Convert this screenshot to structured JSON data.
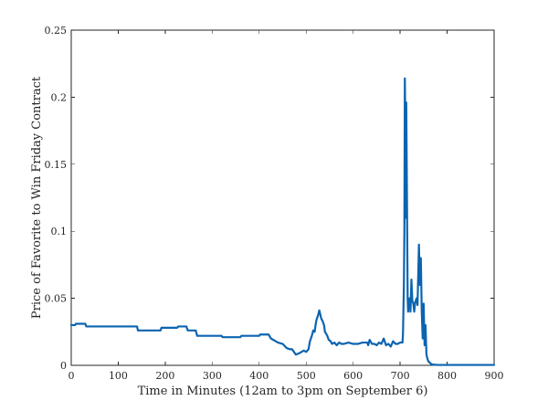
{
  "chart_data": {
    "type": "line",
    "title": "",
    "xlabel": "Time in Minutes (12am to 3pm on September 6)",
    "ylabel": "Price of Favorite to Win Friday Contract",
    "xlim": [
      0,
      900
    ],
    "ylim": [
      0,
      0.25
    ],
    "xticks": [
      0,
      100,
      200,
      300,
      400,
      500,
      600,
      700,
      800,
      900
    ],
    "xtick_labels": [
      "0",
      "100",
      "200",
      "300",
      "400",
      "500",
      "600",
      "700",
      "800",
      "900"
    ],
    "yticks": [
      0,
      0.05,
      0.1,
      0.15,
      0.2,
      0.25
    ],
    "ytick_labels": [
      "0",
      "0.05",
      "0.1",
      "0.15",
      "0.2",
      "0.25"
    ],
    "grid": false,
    "line_color": "#0b64b0",
    "series": [
      {
        "x": [
          0,
          8,
          10,
          30,
          32,
          80,
          82,
          140,
          142,
          190,
          192,
          225,
          228,
          245,
          248,
          265,
          268,
          320,
          322,
          360,
          362,
          400,
          402,
          420,
          425,
          440,
          450,
          458,
          465,
          470,
          478,
          485,
          495,
          500,
          505,
          508,
          512,
          515,
          518,
          520,
          522,
          525,
          528,
          530,
          532,
          535,
          538,
          540,
          545,
          548,
          552,
          555,
          560,
          565,
          570,
          575,
          580,
          590,
          600,
          610,
          620,
          630,
          632,
          635,
          640,
          645,
          650,
          655,
          660,
          665,
          670,
          675,
          680,
          685,
          690,
          695,
          700,
          705,
          706,
          708,
          709,
          710,
          711,
          712,
          713,
          714,
          715,
          716,
          717,
          718,
          719,
          720,
          722,
          724,
          726,
          728,
          730,
          732,
          735,
          737,
          740,
          742,
          744,
          746,
          748,
          750,
          752,
          754,
          756,
          758,
          760,
          763,
          766,
          770,
          780,
          800,
          850,
          900
        ],
        "y": [
          0.03,
          0.03,
          0.031,
          0.031,
          0.029,
          0.029,
          0.029,
          0.029,
          0.026,
          0.026,
          0.028,
          0.028,
          0.029,
          0.029,
          0.026,
          0.026,
          0.022,
          0.022,
          0.021,
          0.021,
          0.022,
          0.022,
          0.023,
          0.023,
          0.02,
          0.017,
          0.016,
          0.013,
          0.012,
          0.012,
          0.008,
          0.009,
          0.011,
          0.01,
          0.012,
          0.018,
          0.022,
          0.026,
          0.025,
          0.03,
          0.034,
          0.037,
          0.041,
          0.038,
          0.035,
          0.033,
          0.03,
          0.025,
          0.022,
          0.019,
          0.018,
          0.016,
          0.017,
          0.015,
          0.017,
          0.016,
          0.016,
          0.017,
          0.016,
          0.016,
          0.017,
          0.017,
          0.015,
          0.019,
          0.016,
          0.016,
          0.015,
          0.017,
          0.016,
          0.02,
          0.015,
          0.016,
          0.014,
          0.018,
          0.016,
          0.016,
          0.017,
          0.017,
          0.023,
          0.06,
          0.1,
          0.214,
          0.18,
          0.11,
          0.196,
          0.15,
          0.1,
          0.05,
          0.04,
          0.048,
          0.043,
          0.05,
          0.04,
          0.064,
          0.048,
          0.046,
          0.04,
          0.047,
          0.05,
          0.045,
          0.09,
          0.06,
          0.08,
          0.04,
          0.02,
          0.046,
          0.015,
          0.03,
          0.008,
          0.005,
          0.003,
          0.002,
          0.001,
          0.0005,
          0.0003,
          0.0003,
          0.0003,
          0.0003
        ]
      }
    ]
  }
}
